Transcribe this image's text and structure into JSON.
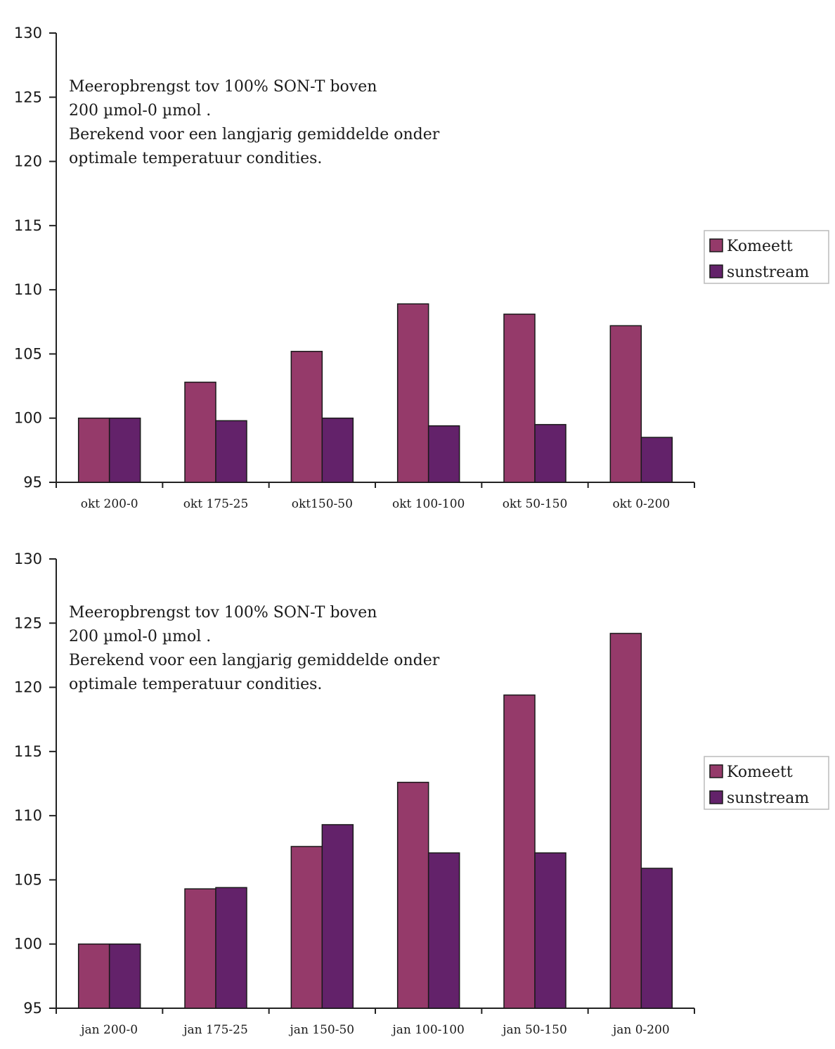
{
  "chart_data": [
    {
      "type": "bar",
      "categories": [
        "okt 200-0",
        "okt 175-25",
        "okt150-50",
        "okt 100-100",
        "okt 50-150",
        "okt 0-200"
      ],
      "series": [
        {
          "name": "Komeett",
          "color": "#953a6a",
          "values": [
            100,
            102.8,
            105.2,
            108.9,
            108.1,
            107.2
          ]
        },
        {
          "name": "sunstream",
          "color": "#63226a",
          "values": [
            100,
            99.8,
            100,
            99.4,
            99.5,
            98.5
          ]
        }
      ],
      "ylim": [
        95,
        130
      ],
      "yticks": [
        95,
        100,
        105,
        110,
        115,
        120,
        125,
        130
      ],
      "annotation": [
        "Meeropbrengst tov 100% SON-T boven",
        "200 µmol-0 µmol .",
        "Berekend voor een langjarig gemiddelde onder",
        "optimale temperatuur condities."
      ],
      "legend": "right",
      "grid": false
    },
    {
      "type": "bar",
      "categories": [
        "jan 200-0",
        "jan 175-25",
        "jan 150-50",
        "jan 100-100",
        "jan 50-150",
        "jan 0-200"
      ],
      "series": [
        {
          "name": "Komeett",
          "color": "#953a6a",
          "values": [
            100,
            104.3,
            107.6,
            112.6,
            119.4,
            124.2
          ]
        },
        {
          "name": "sunstream",
          "color": "#63226a",
          "values": [
            100,
            104.4,
            109.3,
            107.1,
            107.1,
            105.9
          ]
        }
      ],
      "ylim": [
        95,
        130
      ],
      "yticks": [
        95,
        100,
        105,
        110,
        115,
        120,
        125,
        130
      ],
      "annotation": [
        "Meeropbrengst tov 100% SON-T boven",
        "200 µmol-0 µmol .",
        "Berekend voor een langjarig gemiddelde onder",
        "optimale temperatuur condities."
      ],
      "legend": "right",
      "grid": false
    }
  ]
}
